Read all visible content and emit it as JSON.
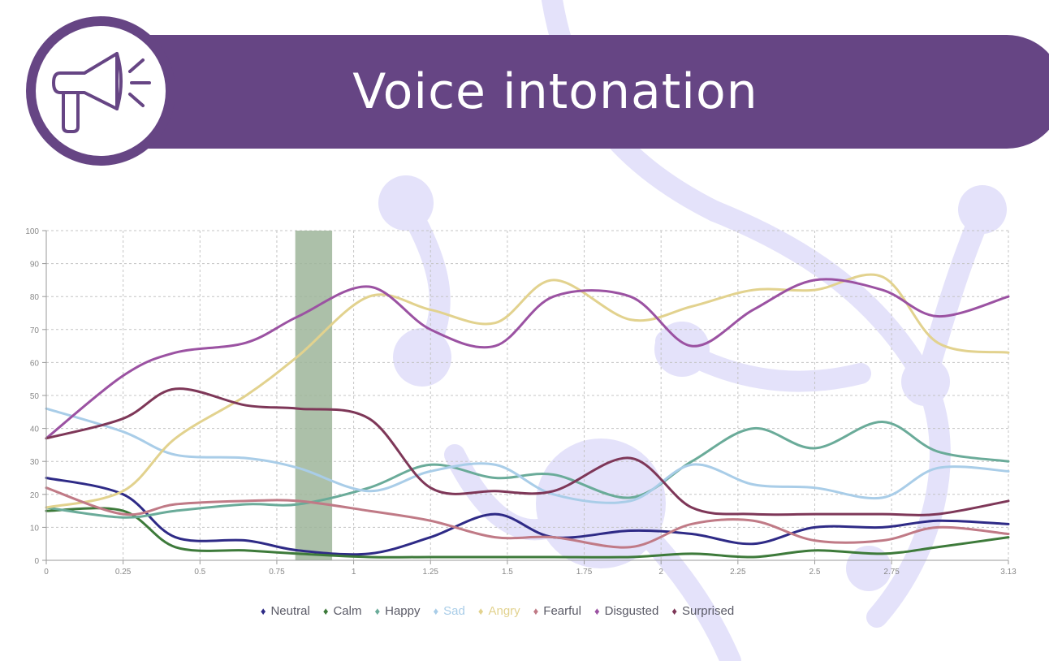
{
  "banner": {
    "title": "Voice intonation",
    "icon": "megaphone-icon",
    "color": "#664584"
  },
  "chart_data": {
    "type": "line",
    "x": [
      0,
      0.25,
      0.42,
      0.65,
      0.82,
      1.05,
      1.25,
      1.46,
      1.65,
      1.9,
      2.1,
      2.3,
      2.5,
      2.72,
      2.9,
      3.13
    ],
    "x_ticks": [
      "0",
      "0.25",
      "0.5",
      "0.75",
      "1",
      "1.25",
      "1.5",
      "1.75",
      "2",
      "2.25",
      "2.5",
      "2.75",
      "3.13"
    ],
    "x_tick_values": [
      0,
      0.25,
      0.5,
      0.75,
      1,
      1.25,
      1.5,
      1.75,
      2,
      2.25,
      2.5,
      2.75,
      3.13
    ],
    "xlim": [
      0,
      3.13
    ],
    "y_ticks": [
      "0",
      "10",
      "20",
      "30",
      "40",
      "50",
      "60",
      "70",
      "80",
      "90",
      "100"
    ],
    "ylim": [
      0,
      100
    ],
    "grid": true,
    "legend_position": "bottom-center",
    "highlight": {
      "x_start": 0.81,
      "x_end": 0.93,
      "color": "#9db59a"
    },
    "series": [
      {
        "name": "Neutral",
        "color": "#2e2a86",
        "values": [
          25,
          20,
          7,
          6,
          3,
          2,
          7,
          14,
          7,
          9,
          8,
          5,
          10,
          10,
          12,
          11
        ]
      },
      {
        "name": "Calm",
        "color": "#3d7a3a",
        "values": [
          15,
          15,
          4,
          3,
          2,
          1,
          1,
          1,
          1,
          1,
          2,
          1,
          3,
          2,
          4,
          7
        ]
      },
      {
        "name": "Happy",
        "color": "#6aab99",
        "values": [
          16,
          13,
          15,
          17,
          17,
          22,
          29,
          25,
          26,
          19,
          30,
          40,
          34,
          42,
          33,
          30
        ]
      },
      {
        "name": "Sad",
        "color": "#a9cde8",
        "values": [
          46,
          39,
          32,
          31,
          28,
          21,
          27,
          29,
          20,
          18,
          29,
          23,
          22,
          19,
          28,
          27
        ]
      },
      {
        "name": "Angry",
        "color": "#e2d28e",
        "values": [
          16,
          21,
          37,
          50,
          62,
          80,
          76,
          72,
          85,
          73,
          77,
          82,
          82,
          86,
          66,
          63
        ]
      },
      {
        "name": "Fearful",
        "color": "#c07a86",
        "values": [
          22,
          14,
          17,
          18,
          18,
          15,
          12,
          7,
          7,
          4,
          11,
          12,
          6,
          6,
          10,
          8
        ]
      },
      {
        "name": "Disgusted",
        "color": "#9b52a2",
        "values": [
          37,
          56,
          63,
          66,
          74,
          83,
          70,
          65,
          80,
          80,
          65,
          76,
          85,
          82,
          74,
          80
        ]
      },
      {
        "name": "Surprised",
        "color": "#7e3758",
        "values": [
          37,
          43,
          52,
          47,
          46,
          43,
          22,
          21,
          21,
          31,
          16,
          14,
          14,
          14,
          14,
          18
        ]
      }
    ]
  }
}
